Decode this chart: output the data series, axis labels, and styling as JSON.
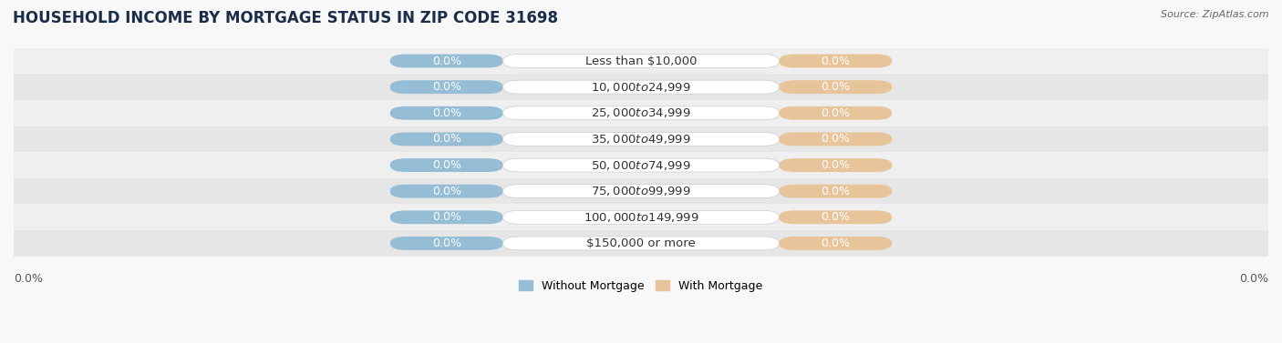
{
  "title": "HOUSEHOLD INCOME BY MORTGAGE STATUS IN ZIP CODE 31698",
  "source": "Source: ZipAtlas.com",
  "categories": [
    "Less than $10,000",
    "$10,000 to $24,999",
    "$25,000 to $34,999",
    "$35,000 to $49,999",
    "$50,000 to $74,999",
    "$75,000 to $99,999",
    "$100,000 to $149,999",
    "$150,000 or more"
  ],
  "without_mortgage_values": [
    0.0,
    0.0,
    0.0,
    0.0,
    0.0,
    0.0,
    0.0,
    0.0
  ],
  "with_mortgage_values": [
    0.0,
    0.0,
    0.0,
    0.0,
    0.0,
    0.0,
    0.0,
    0.0
  ],
  "without_mortgage_color": "#95bdd6",
  "with_mortgage_color": "#e8c49a",
  "label_box_color": "#ffffff",
  "title_fontsize": 12,
  "label_fontsize": 9.5,
  "value_fontsize": 9,
  "legend_fontsize": 9,
  "tick_fontsize": 9,
  "row_colors": [
    "#efefef",
    "#e6e6e6"
  ],
  "fig_bg": "#f8f8f8",
  "axis_label_left": "0.0%",
  "axis_label_right": "0.0%",
  "legend_without": "Without Mortgage",
  "legend_with": "With Mortgage"
}
